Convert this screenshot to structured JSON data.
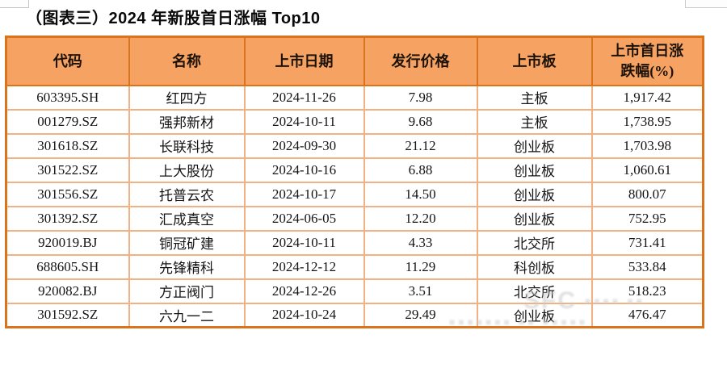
{
  "title": "（图表三）2024 年新股首日涨幅 Top10",
  "table": {
    "column_keys": [
      "code",
      "name",
      "list_date",
      "issue_price",
      "board",
      "first_day_change_pct"
    ],
    "columns": [
      "代码",
      "名称",
      "上市日期",
      "发行价格",
      "上市板",
      "上市首日涨跌幅(%)"
    ],
    "rows": [
      [
        "603395.SH",
        "红四方",
        "2024-11-26",
        "7.98",
        "主板",
        "1,917.42"
      ],
      [
        "001279.SZ",
        "强邦新材",
        "2024-10-11",
        "9.68",
        "主板",
        "1,738.95"
      ],
      [
        "301618.SZ",
        "长联科技",
        "2024-09-30",
        "21.12",
        "创业板",
        "1,703.98"
      ],
      [
        "301522.SZ",
        "上大股份",
        "2024-10-16",
        "6.88",
        "创业板",
        "1,060.61"
      ],
      [
        "301556.SZ",
        "托普云农",
        "2024-10-17",
        "14.50",
        "创业板",
        "800.07"
      ],
      [
        "301392.SZ",
        "汇成真空",
        "2024-06-05",
        "12.20",
        "创业板",
        "752.95"
      ],
      [
        "920019.BJ",
        "铜冠矿建",
        "2024-10-11",
        "4.33",
        "北交所",
        "731.41"
      ],
      [
        "688605.SH",
        "先锋精科",
        "2024-12-12",
        "11.29",
        "科创板",
        "533.84"
      ],
      [
        "920082.BJ",
        "方正阀门",
        "2024-12-26",
        "3.51",
        "北交所",
        "518.23"
      ],
      [
        "301592.SZ",
        "六九一二",
        "2024-10-24",
        "29.49",
        "创业板",
        "476.47"
      ]
    ]
  },
  "watermark": {
    "logo_text": "SFC",
    "blocks1": "■■■■ ■■",
    "blocks2": "■■■■■■■ ■■ ■■■■■"
  },
  "colors": {
    "header_bg": "#F5A263",
    "border_dark": "#D9731C",
    "grid_light": "#F1B183",
    "title_text": "#0A0A0A",
    "cell_text": "#141414",
    "watermark_gray": "#C8C8C8"
  }
}
